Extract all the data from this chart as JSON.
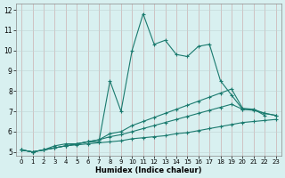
{
  "xlabel": "Humidex (Indice chaleur)",
  "x": [
    0,
    1,
    2,
    3,
    4,
    5,
    6,
    7,
    8,
    9,
    10,
    11,
    12,
    13,
    14,
    15,
    16,
    17,
    18,
    19,
    20,
    21,
    22,
    23
  ],
  "line1": [
    5.1,
    5.0,
    5.1,
    5.3,
    5.4,
    5.4,
    5.5,
    5.5,
    8.5,
    7.0,
    10.0,
    11.8,
    10.3,
    10.5,
    9.8,
    9.7,
    10.2,
    10.3,
    8.5,
    7.8,
    7.1,
    7.1,
    6.8,
    null
  ],
  "line2": [
    5.1,
    5.0,
    5.1,
    5.2,
    5.3,
    5.35,
    5.4,
    5.45,
    5.5,
    5.55,
    5.65,
    5.7,
    5.75,
    5.8,
    5.9,
    5.95,
    6.05,
    6.15,
    6.25,
    6.35,
    6.45,
    6.5,
    6.55,
    6.6
  ],
  "line3": [
    5.1,
    5.0,
    5.1,
    5.2,
    5.3,
    5.4,
    5.5,
    5.6,
    5.75,
    5.85,
    6.0,
    6.15,
    6.3,
    6.45,
    6.6,
    6.75,
    6.9,
    7.05,
    7.2,
    7.35,
    7.1,
    7.05,
    6.9,
    6.8
  ],
  "line4": [
    5.1,
    5.0,
    5.1,
    5.2,
    5.3,
    5.4,
    5.5,
    5.6,
    5.9,
    6.0,
    6.3,
    6.5,
    6.7,
    6.9,
    7.1,
    7.3,
    7.5,
    7.7,
    7.9,
    8.1,
    7.15,
    7.1,
    6.9,
    6.8
  ],
  "line_color": "#1a7a6e",
  "bg_color": "#d8f0f0",
  "grid_color_v": "#c8a0a0",
  "grid_color_h": "#c0d4d4",
  "xlim": [
    -0.5,
    23.5
  ],
  "ylim": [
    4.8,
    12.3
  ],
  "yticks": [
    5,
    6,
    7,
    8,
    9,
    10,
    11,
    12
  ],
  "xticks": [
    0,
    1,
    2,
    3,
    4,
    5,
    6,
    7,
    8,
    9,
    10,
    11,
    12,
    13,
    14,
    15,
    16,
    17,
    18,
    19,
    20,
    21,
    22,
    23
  ]
}
